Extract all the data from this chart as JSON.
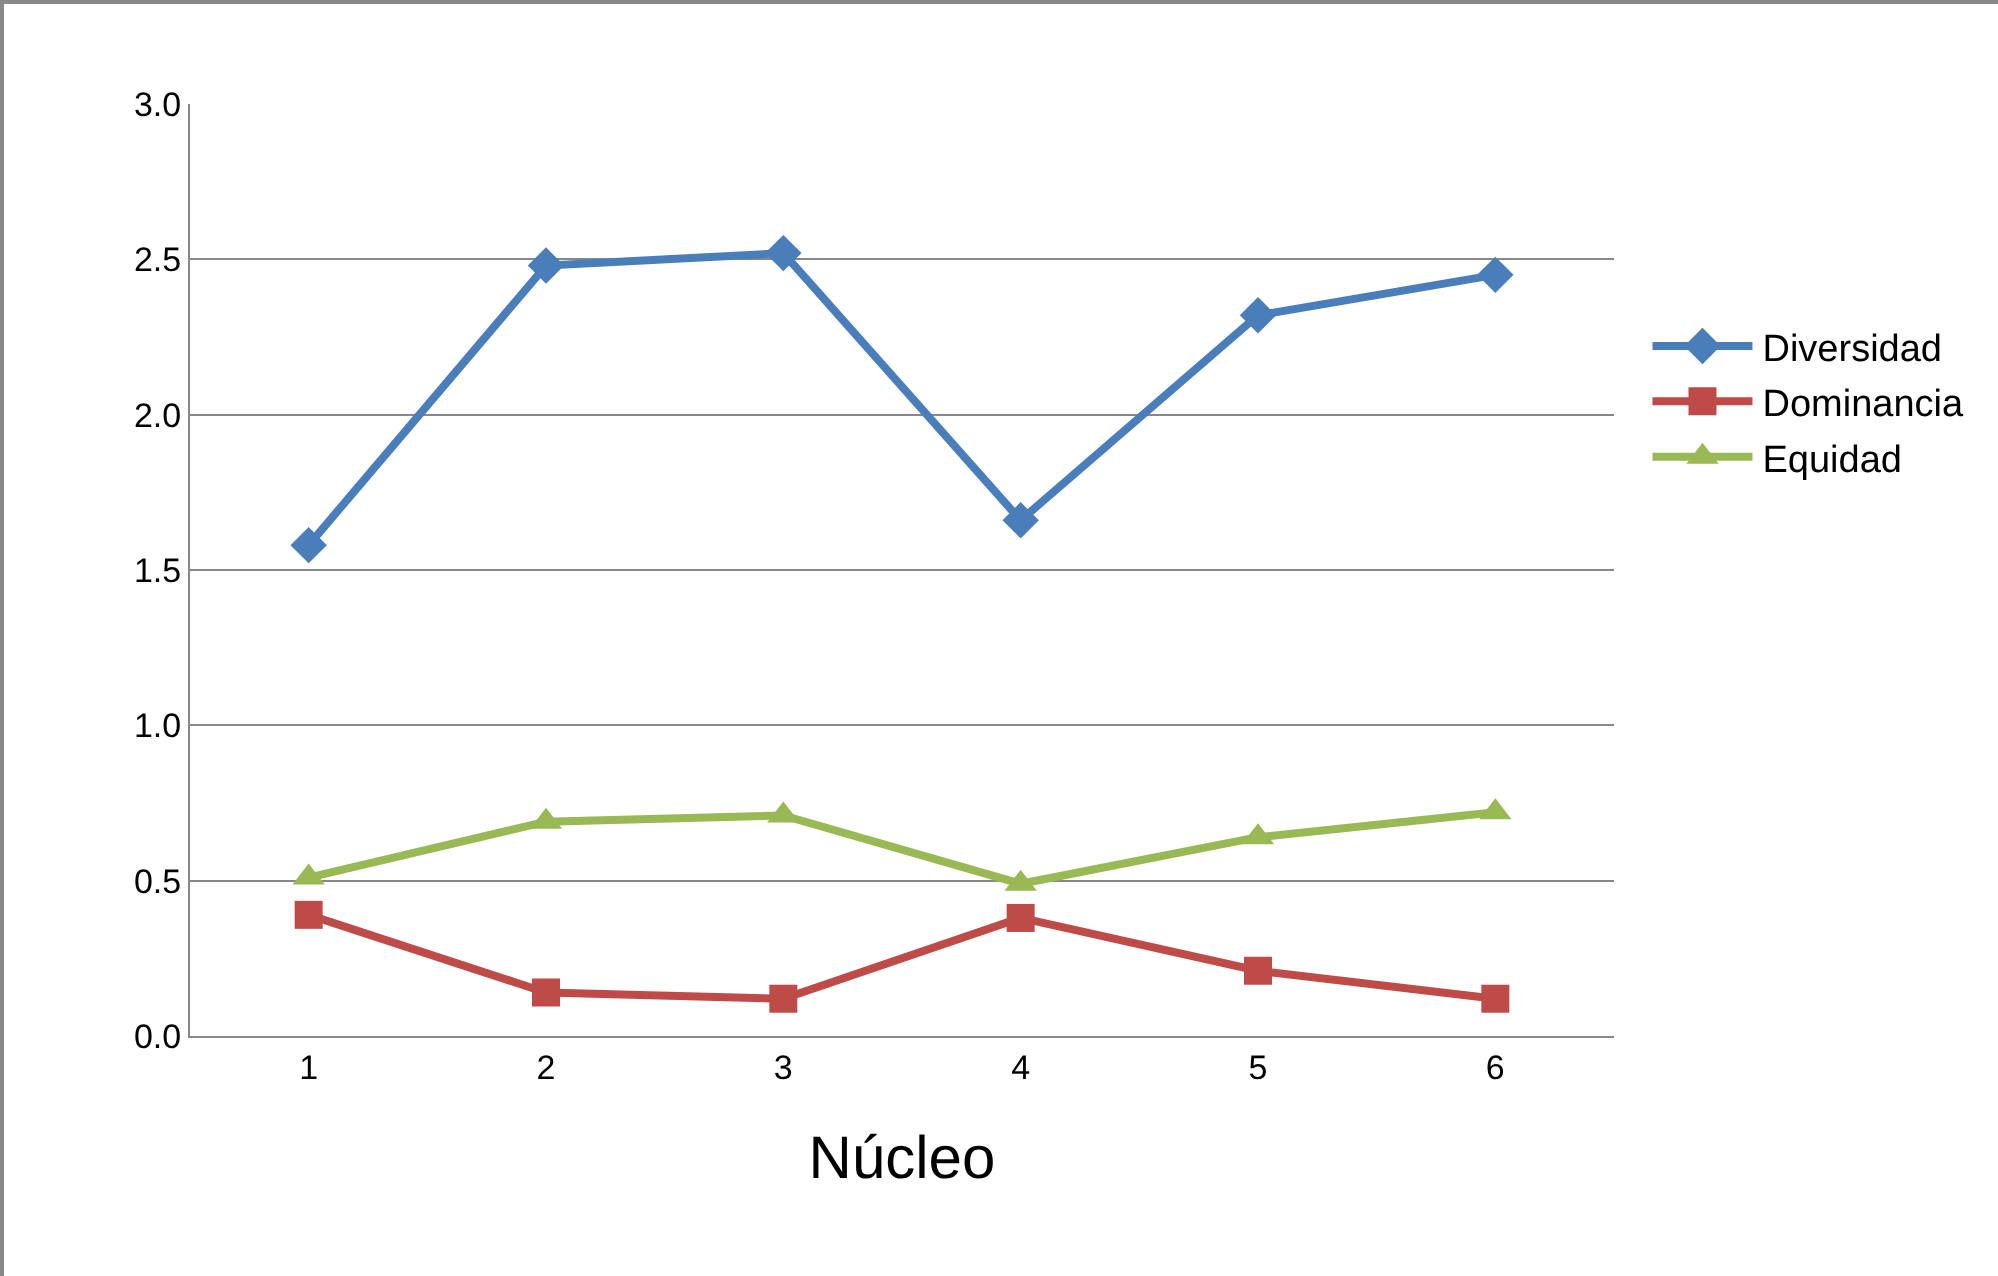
{
  "chart_data": {
    "type": "line",
    "xlabel": "Núcleo",
    "categories": [
      "1",
      "2",
      "3",
      "4",
      "5",
      "6"
    ],
    "series": [
      {
        "name": "Diversidad",
        "color": "#4a7ebb",
        "marker": "diamond",
        "values": [
          1.58,
          2.48,
          2.52,
          1.66,
          2.32,
          2.45
        ]
      },
      {
        "name": "Dominancia",
        "color": "#be4b48",
        "marker": "square",
        "values": [
          0.39,
          0.14,
          0.12,
          0.38,
          0.21,
          0.12
        ]
      },
      {
        "name": "Equidad",
        "color": "#98b954",
        "marker": "triangle",
        "values": [
          0.51,
          0.69,
          0.71,
          0.49,
          0.64,
          0.72
        ]
      }
    ],
    "ylim": [
      0,
      3
    ],
    "yticks": [
      {
        "value": 0,
        "label": "0.0"
      },
      0.5,
      {
        "value": 1,
        "label": "1.0"
      },
      1.5,
      {
        "value": 2,
        "label": "2.0"
      },
      2.5,
      {
        "value": 3,
        "label": "3.0"
      }
    ],
    "grid": "y",
    "legend": "right",
    "line_style": "solid"
  }
}
